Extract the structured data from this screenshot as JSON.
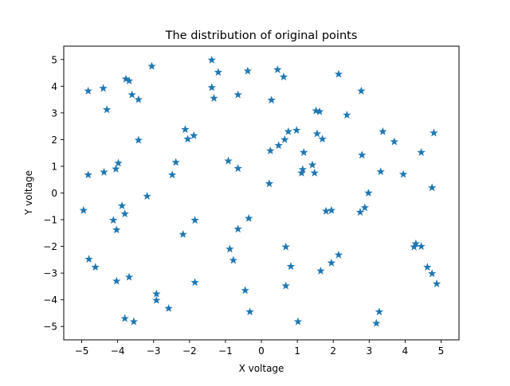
{
  "chart_data": {
    "type": "scatter",
    "title": "The distribution of original points",
    "xlabel": "X voltage",
    "ylabel": "Y voltage",
    "xlim": [
      -5.5,
      5.5
    ],
    "ylim": [
      -5.5,
      5.5
    ],
    "xticks": [
      -5,
      -4,
      -3,
      -2,
      -1,
      0,
      1,
      2,
      3,
      4,
      5
    ],
    "yticks": [
      -5,
      -4,
      -3,
      -2,
      -1,
      0,
      1,
      2,
      3,
      4,
      5
    ],
    "grid": false,
    "marker": "star",
    "color": "#1f77b4",
    "points": [
      {
        "x": -4.95,
        "y": -0.65
      },
      {
        "x": -4.82,
        "y": 3.82
      },
      {
        "x": -4.82,
        "y": 0.68
      },
      {
        "x": -4.8,
        "y": -2.48
      },
      {
        "x": -4.62,
        "y": -2.78
      },
      {
        "x": -4.4,
        "y": 3.92
      },
      {
        "x": -4.38,
        "y": 0.78
      },
      {
        "x": -4.3,
        "y": 3.12
      },
      {
        "x": -4.12,
        "y": -1.02
      },
      {
        "x": -4.05,
        "y": 0.9
      },
      {
        "x": -4.03,
        "y": -1.38
      },
      {
        "x": -4.03,
        "y": -3.3
      },
      {
        "x": -3.98,
        "y": 1.12
      },
      {
        "x": -3.88,
        "y": -0.48
      },
      {
        "x": -3.8,
        "y": -0.78
      },
      {
        "x": -3.8,
        "y": -4.7
      },
      {
        "x": -3.77,
        "y": 4.27
      },
      {
        "x": -3.68,
        "y": 4.2
      },
      {
        "x": -3.68,
        "y": -3.15
      },
      {
        "x": -3.6,
        "y": 3.68
      },
      {
        "x": -3.55,
        "y": -4.82
      },
      {
        "x": -3.42,
        "y": 3.5
      },
      {
        "x": -3.42,
        "y": 1.98
      },
      {
        "x": -3.18,
        "y": -0.12
      },
      {
        "x": -3.05,
        "y": 4.75
      },
      {
        "x": -2.92,
        "y": -3.78
      },
      {
        "x": -2.92,
        "y": -4.02
      },
      {
        "x": -2.58,
        "y": -4.32
      },
      {
        "x": -2.48,
        "y": 0.68
      },
      {
        "x": -2.38,
        "y": 1.15
      },
      {
        "x": -2.18,
        "y": -1.55
      },
      {
        "x": -2.12,
        "y": 2.38
      },
      {
        "x": -2.05,
        "y": 2.02
      },
      {
        "x": -1.88,
        "y": 2.15
      },
      {
        "x": -1.85,
        "y": -1.02
      },
      {
        "x": -1.85,
        "y": -3.35
      },
      {
        "x": -1.38,
        "y": 4.98
      },
      {
        "x": -1.38,
        "y": 3.95
      },
      {
        "x": -1.32,
        "y": 3.55
      },
      {
        "x": -1.2,
        "y": 4.52
      },
      {
        "x": -0.92,
        "y": 1.2
      },
      {
        "x": -0.88,
        "y": -2.1
      },
      {
        "x": -0.78,
        "y": -2.52
      },
      {
        "x": -0.65,
        "y": 3.68
      },
      {
        "x": -0.65,
        "y": 0.92
      },
      {
        "x": -0.65,
        "y": -1.35
      },
      {
        "x": -0.45,
        "y": -3.65
      },
      {
        "x": -0.38,
        "y": 4.57
      },
      {
        "x": -0.35,
        "y": -0.95
      },
      {
        "x": -0.32,
        "y": -4.45
      },
      {
        "x": 0.22,
        "y": 0.35
      },
      {
        "x": 0.25,
        "y": 1.58
      },
      {
        "x": 0.28,
        "y": 3.48
      },
      {
        "x": 0.45,
        "y": 4.62
      },
      {
        "x": 0.48,
        "y": 1.78
      },
      {
        "x": 0.62,
        "y": 4.35
      },
      {
        "x": 0.65,
        "y": 2.0
      },
      {
        "x": 0.68,
        "y": -2.02
      },
      {
        "x": 0.68,
        "y": -3.48
      },
      {
        "x": 0.75,
        "y": 2.3
      },
      {
        "x": 0.82,
        "y": -2.75
      },
      {
        "x": 0.98,
        "y": 2.35
      },
      {
        "x": 1.02,
        "y": -4.82
      },
      {
        "x": 1.12,
        "y": 0.75
      },
      {
        "x": 1.15,
        "y": 0.88
      },
      {
        "x": 1.18,
        "y": 1.52
      },
      {
        "x": 1.42,
        "y": 1.05
      },
      {
        "x": 1.48,
        "y": 0.75
      },
      {
        "x": 1.52,
        "y": 3.08
      },
      {
        "x": 1.55,
        "y": 2.22
      },
      {
        "x": 1.62,
        "y": 3.05
      },
      {
        "x": 1.65,
        "y": -2.92
      },
      {
        "x": 1.7,
        "y": 2.02
      },
      {
        "x": 1.8,
        "y": -0.68
      },
      {
        "x": 1.95,
        "y": -0.65
      },
      {
        "x": 1.95,
        "y": -2.62
      },
      {
        "x": 2.15,
        "y": 4.45
      },
      {
        "x": 2.15,
        "y": -2.32
      },
      {
        "x": 2.38,
        "y": 2.92
      },
      {
        "x": 2.75,
        "y": -0.72
      },
      {
        "x": 2.78,
        "y": 3.82
      },
      {
        "x": 2.8,
        "y": 1.42
      },
      {
        "x": 2.88,
        "y": -0.55
      },
      {
        "x": 2.98,
        "y": 0.0
      },
      {
        "x": 3.2,
        "y": -4.88
      },
      {
        "x": 3.28,
        "y": -4.45
      },
      {
        "x": 3.32,
        "y": 0.8
      },
      {
        "x": 3.38,
        "y": 2.3
      },
      {
        "x": 3.7,
        "y": 1.92
      },
      {
        "x": 3.95,
        "y": 0.7
      },
      {
        "x": 4.25,
        "y": -2.02
      },
      {
        "x": 4.3,
        "y": -1.9
      },
      {
        "x": 4.45,
        "y": -2.0
      },
      {
        "x": 4.45,
        "y": 1.52
      },
      {
        "x": 4.62,
        "y": -2.78
      },
      {
        "x": 4.75,
        "y": 0.2
      },
      {
        "x": 4.75,
        "y": -3.02
      },
      {
        "x": 4.8,
        "y": 2.25
      },
      {
        "x": 4.88,
        "y": -3.4
      }
    ]
  }
}
